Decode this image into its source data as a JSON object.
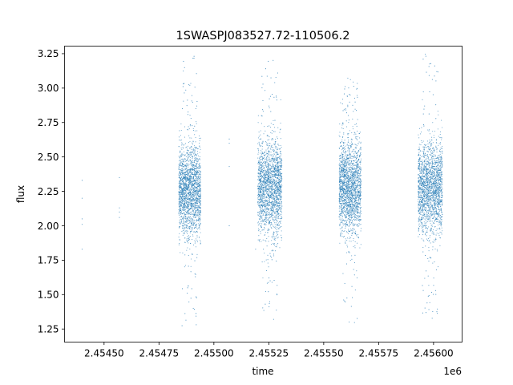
{
  "chart_data": {
    "type": "scatter",
    "title": "1SWASPJ083527.72-110506.2",
    "xlabel": "time",
    "ylabel": "flux",
    "x_offset_label": "1e6",
    "xlim": [
      2.45432,
      2.45613
    ],
    "ylim": [
      1.155,
      3.305
    ],
    "x_ticks": [
      2.4545,
      2.45475,
      2.455,
      2.45525,
      2.4555,
      2.45575,
      2.456
    ],
    "x_tick_labels": [
      "2.45450",
      "2.45475",
      "2.45500",
      "2.45525",
      "2.45550",
      "2.45575",
      "2.45600"
    ],
    "y_ticks": [
      1.25,
      1.5,
      1.75,
      2.0,
      2.25,
      2.5,
      2.75,
      3.0,
      3.25
    ],
    "y_tick_labels": [
      "1.25",
      "1.50",
      "1.75",
      "2.00",
      "2.25",
      "2.50",
      "2.75",
      "3.00",
      "3.25"
    ],
    "grid": false,
    "marker_color": "#1f77b4",
    "isolated_points": [
      {
        "x": 2.4544,
        "y": 2.33
      },
      {
        "x": 2.4544,
        "y": 2.2
      },
      {
        "x": 2.4544,
        "y": 2.05
      },
      {
        "x": 2.4544,
        "y": 2.01
      },
      {
        "x": 2.4544,
        "y": 1.83
      },
      {
        "x": 2.45457,
        "y": 2.13
      },
      {
        "x": 2.45457,
        "y": 2.1
      },
      {
        "x": 2.45457,
        "y": 2.06
      },
      {
        "x": 2.45457,
        "y": 2.35
      },
      {
        "x": 2.45507,
        "y": 2.63
      },
      {
        "x": 2.45507,
        "y": 2.6
      },
      {
        "x": 2.45507,
        "y": 2.43
      },
      {
        "x": 2.45507,
        "y": 2.0
      },
      {
        "x": 2.45519,
        "y": 1.83
      }
    ],
    "clusters": [
      {
        "x_start": 2.45484,
        "x_end": 2.45494,
        "y_center": 2.26,
        "y_spread": 0.17,
        "y_min": 1.27,
        "y_max": 3.25
      },
      {
        "x_start": 2.4552,
        "x_end": 2.45531,
        "y_center": 2.28,
        "y_spread": 0.17,
        "y_min": 1.3,
        "y_max": 3.24
      },
      {
        "x_start": 2.45557,
        "x_end": 2.45567,
        "y_center": 2.28,
        "y_spread": 0.17,
        "y_min": 1.25,
        "y_max": 3.09
      },
      {
        "x_start": 2.45593,
        "x_end": 2.45604,
        "y_center": 2.27,
        "y_spread": 0.17,
        "y_min": 1.32,
        "y_max": 3.27
      }
    ]
  }
}
